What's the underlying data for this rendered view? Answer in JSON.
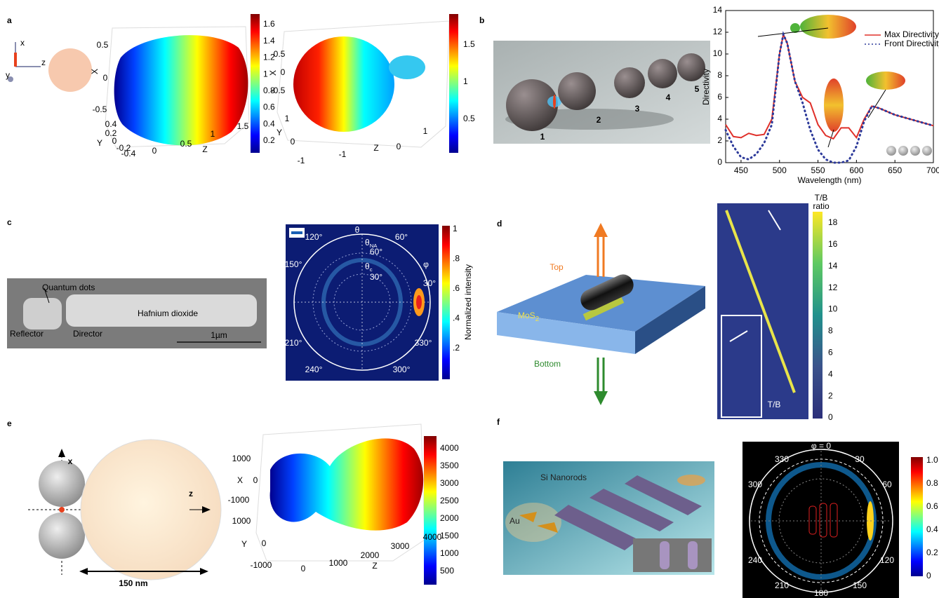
{
  "a": {
    "label": "a",
    "icon": {
      "x": "x",
      "z": "z",
      "y": "y"
    },
    "left": {
      "x_label": "X",
      "x_ticks": [
        "0.5",
        "0",
        "-0.5"
      ],
      "y_label": "Y",
      "y_ticks": [
        "0.4",
        "0.2",
        "0",
        "-0.2",
        "-0.4"
      ],
      "z_label": "Z",
      "z_ticks": [
        "0",
        "0.5",
        "1",
        "1.5"
      ],
      "colorbar": [
        "1.6",
        "1.4",
        "1.2",
        "1",
        "0.8",
        "0.6",
        "0.4",
        "0.2"
      ]
    },
    "right": {
      "x_label": "X",
      "x_ticks": [
        "0.5",
        "0",
        "-0.5"
      ],
      "y_label": "Y",
      "y_ticks": [
        "1",
        "0",
        "-1"
      ],
      "z_label": "Z",
      "z_ticks": [
        "-1",
        "0",
        "1"
      ],
      "colorbar": [
        "1.5",
        "1",
        "0.5"
      ]
    }
  },
  "b": {
    "label": "b",
    "particles": [
      "1",
      "2",
      "3",
      "4",
      "5"
    ],
    "chart": {
      "type": "line",
      "x_label": "Wavelength (nm)",
      "y_label": "Directivity",
      "x": [
        430,
        440,
        450,
        460,
        470,
        480,
        490,
        500,
        505,
        510,
        520,
        530,
        540,
        550,
        560,
        570,
        580,
        590,
        600,
        610,
        620,
        630,
        640,
        650,
        660,
        670,
        680,
        690,
        700
      ],
      "series": [
        {
          "name": "Max Directivity",
          "color": "#e0302a",
          "values": [
            3.5,
            2.4,
            2.3,
            2.7,
            2.5,
            2.6,
            4,
            10,
            11.8,
            11,
            7.5,
            6,
            5.5,
            3.5,
            2.5,
            2.2,
            3.2,
            3.2,
            2.3,
            4,
            5.2,
            5,
            4.7,
            4.4,
            4.2,
            4,
            3.8,
            3.6,
            3.4
          ]
        },
        {
          "name": "Front Directivity",
          "color": "#2d3a9a",
          "values": [
            3,
            1.5,
            0.5,
            0.3,
            0.8,
            1.8,
            3.5,
            10,
            11.8,
            11,
            7.5,
            5.5,
            3,
            1.2,
            0.3,
            0,
            0,
            0.2,
            1.5,
            3.8,
            5.2,
            5,
            4.7,
            4.4,
            4.2,
            4,
            3.8,
            3.6,
            3.4
          ]
        }
      ],
      "xlim": [
        430,
        700
      ],
      "ylim": [
        0,
        14
      ],
      "xticks": [
        450,
        500,
        550,
        600,
        650,
        700
      ],
      "yticks": [
        0,
        2,
        4,
        6,
        8,
        10,
        12,
        14
      ]
    }
  },
  "c": {
    "label": "c",
    "sem": {
      "quantum_dots": "Quantum dots",
      "hafnium": "Hafnium dioxide",
      "reflector": "Reflector",
      "director": "Director",
      "scale": "1µm"
    },
    "polar": {
      "theta": "θ",
      "theta_na": {
        "base": "θ",
        "sub": "NA"
      },
      "theta_c": {
        "base": "θ",
        "sub": "c"
      },
      "phi": "φ",
      "angles": [
        "120°",
        "60°",
        "150°",
        "30°",
        "210°",
        "330°",
        "240°",
        "300°"
      ],
      "radial": [
        "60°",
        "30°"
      ],
      "colorbar": [
        "1",
        ".8",
        ".6",
        ".4",
        ".2"
      ],
      "colorbar_label": "Normalized intensity"
    }
  },
  "d": {
    "label": "d",
    "top": "Top",
    "bottom": "Bottom",
    "mos2": {
      "base": "MoS",
      "sub": "2"
    },
    "image_label": "T/B",
    "colorbar_title": [
      "T/B",
      "ratio"
    ],
    "colorbar": [
      "18",
      "16",
      "14",
      "12",
      "10",
      "8",
      "6",
      "4",
      "2",
      "0"
    ]
  },
  "e": {
    "label": "e",
    "x": "x",
    "z": "z",
    "size": "150 nm",
    "plot": {
      "x_label": "X",
      "x_ticks": [
        "1000",
        "0",
        "-1000"
      ],
      "y_label": "Y",
      "y_ticks": [
        "1000",
        "0",
        "-1000"
      ],
      "z_label": "Z",
      "z_ticks": [
        "0",
        "1000",
        "2000",
        "3000",
        "4000"
      ],
      "colorbar": [
        "4000",
        "3500",
        "3000",
        "2500",
        "2000",
        "1500",
        "1000",
        "500"
      ]
    }
  },
  "f": {
    "label": "f",
    "si": "Si Nanorods",
    "au": "Au",
    "polar": {
      "top": "φ = 0",
      "angles": [
        "330",
        "30",
        "300",
        "60",
        "240",
        "120",
        "210",
        "150",
        "180"
      ],
      "colorbar": [
        "1.0",
        "0.8",
        "0.6",
        "0.4",
        "0.2",
        "0"
      ]
    }
  }
}
